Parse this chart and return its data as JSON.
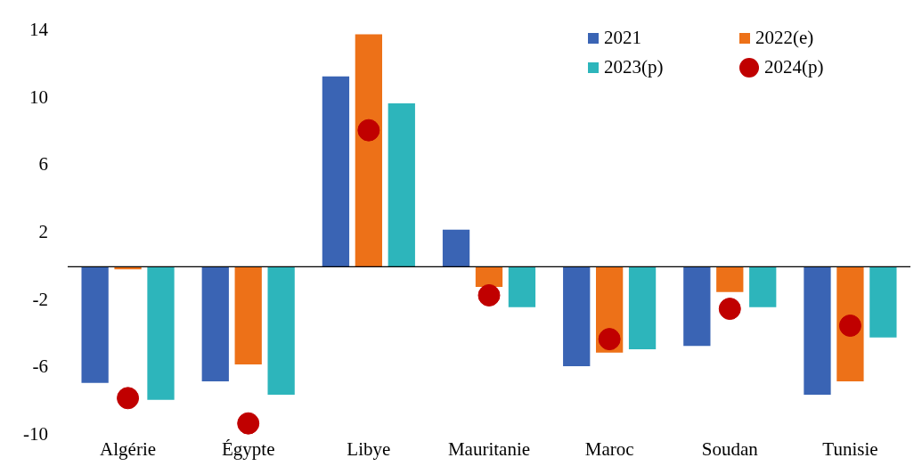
{
  "chart_data": {
    "type": "bar",
    "categories": [
      "Algérie",
      "Égypte",
      "Libye",
      "Mauritanie",
      "Maroc",
      "Soudan",
      "Tunisie"
    ],
    "series": [
      {
        "name": "2021",
        "color": "#3a64b4",
        "values": [
          -6.9,
          -6.8,
          11.3,
          2.2,
          -5.9,
          -4.7,
          -7.6
        ]
      },
      {
        "name": "2022(e)",
        "color": "#ed7118",
        "values": [
          -0.15,
          -5.8,
          13.8,
          -1.2,
          -5.1,
          -1.5,
          -6.8
        ]
      },
      {
        "name": "2023(p)",
        "color": "#2db5bb",
        "values": [
          -7.9,
          -7.6,
          9.7,
          -2.4,
          -4.9,
          -2.4,
          -4.2
        ]
      },
      {
        "name": "2024(p)",
        "color": "#c00000",
        "type": "scatter",
        "marker": "circle",
        "x": [
          "Algérie",
          "Égypte",
          "Libye",
          "Mauritanie",
          "Maroc",
          "Soudan",
          "Tunisie"
        ],
        "values": [
          -7.8,
          -9.3,
          8.1,
          -1.7,
          -4.3,
          -2.5,
          -3.5
        ]
      }
    ],
    "ylim": [
      -10,
      14
    ],
    "yticks": [
      -10,
      -6,
      -2,
      2,
      6,
      10,
      14
    ],
    "grid": false,
    "legend": "top right"
  }
}
